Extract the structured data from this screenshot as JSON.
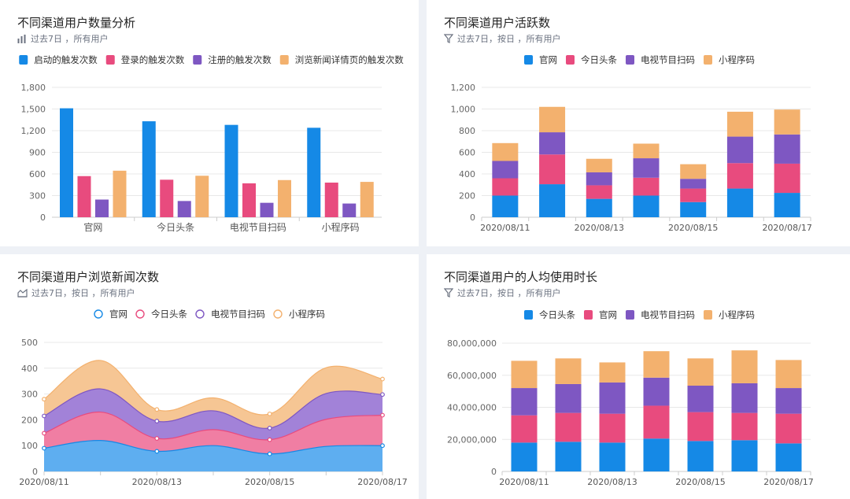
{
  "cards": [
    {
      "title": "不同渠道用户数量分析",
      "subtitle": "过去7日 ，所有用户",
      "icon": "bar-chart-icon"
    },
    {
      "title": "不同渠道用户活跃数",
      "subtitle": "过去7日，按日 ，所有用户",
      "icon": "funnel-icon"
    },
    {
      "title": "不同渠道用户浏览新闻次数",
      "subtitle": "过去7日，按日 ，所有用户",
      "icon": "area-chart-icon"
    },
    {
      "title": "不同渠道用户的人均使用时长",
      "subtitle": "过去7日，按日 ，所有用户",
      "icon": "funnel-icon"
    }
  ],
  "chart_data": [
    {
      "type": "bar",
      "title": "不同渠道用户数量分析",
      "categories": [
        "官网",
        "今日头条",
        "电视节目扫码",
        "小程序码"
      ],
      "series": [
        {
          "name": "启动的触发次数",
          "color": "#1589e6",
          "values": [
            1510,
            1330,
            1280,
            1240
          ]
        },
        {
          "name": "登录的触发次数",
          "color": "#e84b7e",
          "values": [
            570,
            520,
            470,
            480
          ]
        },
        {
          "name": "注册的触发次数",
          "color": "#7e57c2",
          "values": [
            245,
            225,
            200,
            190
          ]
        },
        {
          "name": "浏览新闻详情页的触发次数",
          "color": "#f3b16e",
          "values": [
            645,
            575,
            515,
            490
          ]
        }
      ],
      "ylim": [
        0,
        1800
      ],
      "yticks": [
        "0",
        "300",
        "600",
        "900",
        "1,200",
        "1,500",
        "1,800"
      ],
      "legend": "top"
    },
    {
      "type": "bar",
      "stacked": true,
      "title": "不同渠道用户活跃数",
      "categories": [
        "2020/08/11",
        "2020/08/12",
        "2020/08/13",
        "2020/08/14",
        "2020/08/15",
        "2020/08/16",
        "2020/08/17"
      ],
      "shown_xticks": [
        "2020/08/11",
        "",
        "2020/08/13",
        "",
        "2020/08/15",
        "",
        "2020/08/17"
      ],
      "series": [
        {
          "name": "官网",
          "color": "#1589e6",
          "values": [
            200,
            305,
            170,
            200,
            140,
            265,
            225
          ]
        },
        {
          "name": "今日头条",
          "color": "#e84b7e",
          "values": [
            160,
            275,
            125,
            165,
            125,
            235,
            270
          ]
        },
        {
          "name": "电视节目扫码",
          "color": "#7e57c2",
          "values": [
            160,
            205,
            120,
            180,
            90,
            245,
            270
          ]
        },
        {
          "name": "小程序码",
          "color": "#f3b16e",
          "values": [
            165,
            235,
            125,
            135,
            135,
            230,
            230
          ]
        }
      ],
      "ylim": [
        0,
        1200
      ],
      "yticks": [
        "0",
        "200",
        "400",
        "600",
        "800",
        "1,000",
        "1,200"
      ],
      "legend": "top"
    },
    {
      "type": "area",
      "stacked": true,
      "title": "不同渠道用户浏览新闻次数",
      "x": [
        "2020/08/11",
        "2020/08/12",
        "2020/08/13",
        "2020/08/14",
        "2020/08/15",
        "2020/08/16",
        "2020/08/17"
      ],
      "shown_xticks": [
        "2020/08/11",
        "",
        "2020/08/13",
        "",
        "2020/08/15",
        "",
        "2020/08/17"
      ],
      "series": [
        {
          "name": "官网",
          "color": "#1589e6",
          "values": [
            90,
            120,
            78,
            100,
            68,
            97,
            100
          ]
        },
        {
          "name": "今日头条",
          "color": "#e84b7e",
          "values": [
            58,
            110,
            50,
            62,
            55,
            105,
            118
          ]
        },
        {
          "name": "电视节目扫码",
          "color": "#7e57c2",
          "values": [
            67,
            90,
            67,
            73,
            45,
            100,
            80
          ]
        },
        {
          "name": "小程序码",
          "color": "#f3b16e",
          "values": [
            65,
            110,
            45,
            50,
            55,
            100,
            60
          ]
        }
      ],
      "ylim": [
        0,
        500
      ],
      "yticks": [
        "0",
        "100",
        "200",
        "300",
        "400",
        "500"
      ],
      "legend": "top"
    },
    {
      "type": "bar",
      "stacked": true,
      "title": "不同渠道用户的人均使用时长",
      "categories": [
        "2020/08/11",
        "2020/08/12",
        "2020/08/13",
        "2020/08/14",
        "2020/08/15",
        "2020/08/16",
        "2020/08/17"
      ],
      "shown_xticks": [
        "2020/08/11",
        "",
        "2020/08/13",
        "",
        "2020/08/15",
        "",
        "2020/08/17"
      ],
      "series": [
        {
          "name": "今日头条",
          "color": "#1589e6",
          "values": [
            18000000,
            18500000,
            18000000,
            20500000,
            19000000,
            19500000,
            17500000
          ]
        },
        {
          "name": "官网",
          "color": "#e84b7e",
          "values": [
            17000000,
            18000000,
            18000000,
            20500000,
            18000000,
            17000000,
            18500000
          ]
        },
        {
          "name": "电视节目扫码",
          "color": "#7e57c2",
          "values": [
            17000000,
            18000000,
            19500000,
            17500000,
            16500000,
            18500000,
            16000000
          ]
        },
        {
          "name": "小程序码",
          "color": "#f3b16e",
          "values": [
            17000000,
            16000000,
            12500000,
            16500000,
            17000000,
            20500000,
            17500000
          ]
        }
      ],
      "ylim": [
        0,
        80000000
      ],
      "yticks": [
        "0",
        "20,000,000",
        "40,000,000",
        "60,000,000",
        "80,000,000"
      ],
      "legend": "top"
    }
  ]
}
